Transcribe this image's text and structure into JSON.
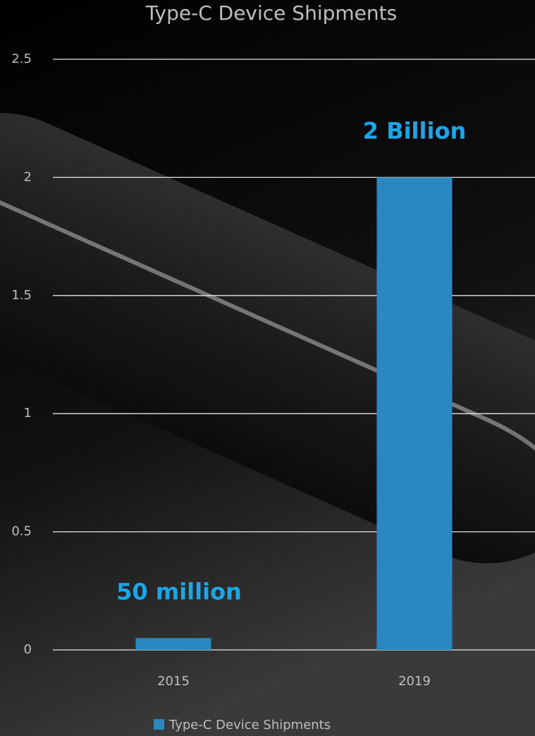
{
  "chart_data": {
    "type": "bar",
    "title": "Type-C Device Shipments",
    "categories": [
      "2015",
      "2019"
    ],
    "series": [
      {
        "name": "Type-C Device Shipments",
        "color": "#2a88c0",
        "values": [
          0.05,
          2
        ],
        "value_labels": [
          "50 million",
          "2 Billion"
        ],
        "label_color": "#1ba6ea"
      }
    ],
    "ylim": [
      0,
      2.5
    ],
    "yticks": [
      0,
      0.5,
      1,
      1.5,
      2,
      2.5
    ],
    "grid": true,
    "legend": "bottom"
  }
}
